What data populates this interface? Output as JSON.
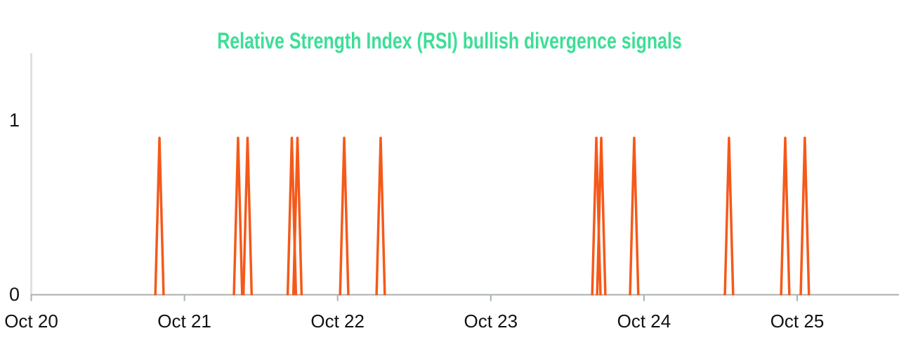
{
  "chart_data": {
    "type": "line",
    "title": "Relative Strength Index (RSI) bullish divergence signals",
    "title_color": "#3EDE97",
    "line_color": "#F5591A",
    "x_axis_line_color": "#A9B0AE",
    "y_axis_line_color": "#DCE2DF",
    "tick_label_color": "#121212",
    "x_tick_labels": [
      "Oct 20",
      "Oct 21",
      "Oct 22",
      "Oct 23",
      "Oct 24",
      "Oct 25"
    ],
    "y_ticks": [
      {
        "label": "0",
        "value": 0
      },
      {
        "label": "1",
        "value": 1
      }
    ],
    "ylim": [
      0,
      1.4
    ],
    "xlim_days": [
      0,
      5.665
    ],
    "grid": false,
    "legend_position": "none",
    "series": [
      {
        "name": "RSI bullish divergence signal",
        "baseline_value": 0,
        "peak_value": 0.9,
        "spike_half_width_days": 0.027,
        "spike_times_days_after_oct20": [
          0.837,
          1.35,
          1.412,
          1.701,
          1.738,
          2.043,
          2.281,
          3.689,
          3.721,
          3.936,
          4.555,
          4.922,
          5.05
        ]
      }
    ]
  }
}
